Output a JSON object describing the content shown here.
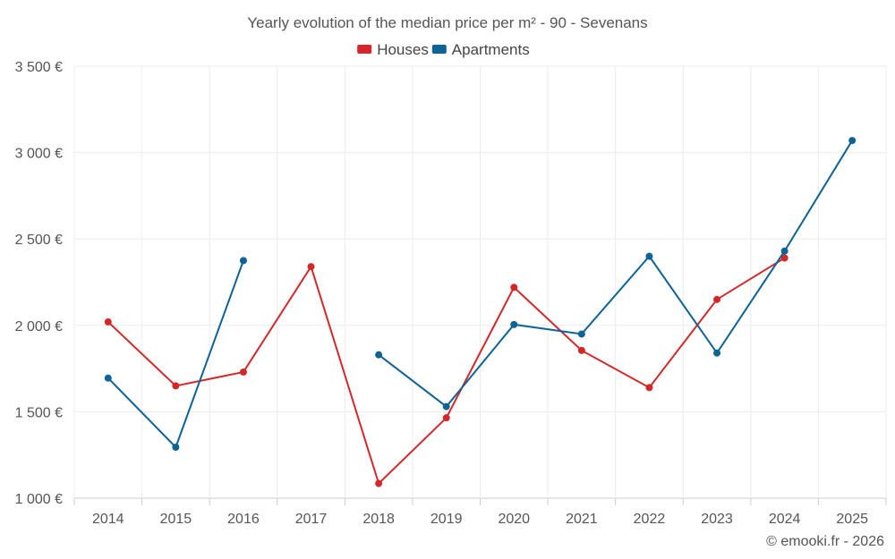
{
  "chart_data": {
    "type": "line",
    "title": "Yearly evolution of the median price per m² - 90 - Sevenans",
    "categories": [
      "2014",
      "2015",
      "2016",
      "2017",
      "2018",
      "2019",
      "2020",
      "2021",
      "2022",
      "2023",
      "2024",
      "2025"
    ],
    "series": [
      {
        "name": "Houses",
        "color": "#d62728",
        "values": [
          2020,
          1650,
          1730,
          2340,
          1085,
          1465,
          2220,
          1855,
          1640,
          2150,
          2390,
          null
        ]
      },
      {
        "name": "Apartments",
        "color": "#0d6396",
        "values": [
          1695,
          1295,
          2375,
          null,
          1830,
          1530,
          2005,
          1950,
          2400,
          1840,
          2430,
          3070
        ]
      }
    ],
    "ylim": [
      1000,
      3500
    ],
    "yticks": [
      1000,
      1500,
      2000,
      2500,
      3000,
      3500
    ],
    "ytick_labels": [
      "1 000 €",
      "1 500 €",
      "2 000 €",
      "2 500 €",
      "3 000 €",
      "3 500 €"
    ],
    "xlabel": "",
    "ylabel": "",
    "grid": true,
    "legend_position": "top-center"
  },
  "credit": "© emooki.fr - 2026"
}
